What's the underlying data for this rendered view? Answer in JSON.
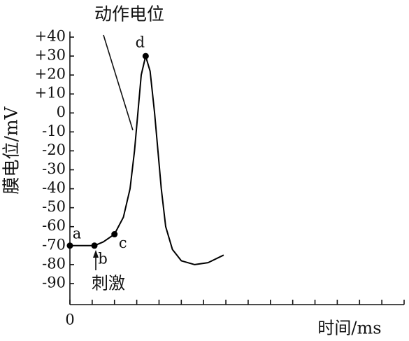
{
  "chart_data": {
    "type": "line",
    "x_label": "时间/ms",
    "y_label": "膜电位/mV",
    "annotations": {
      "stimulus": "刺激",
      "action_potential": "动作电位"
    },
    "x": [
      0,
      1.1,
      1.5,
      2.0,
      2.4,
      2.7,
      2.9,
      3.05,
      3.2,
      3.4,
      3.6,
      3.8,
      3.95,
      4.1,
      4.3,
      4.6,
      5.0,
      5.6,
      6.2,
      6.9
    ],
    "values": [
      -70,
      -70,
      -68,
      -64,
      -55,
      -40,
      -20,
      0,
      20,
      30,
      22,
      0,
      -20,
      -40,
      -60,
      -72,
      -78,
      -80,
      -79,
      -75
    ],
    "color": "#000000",
    "points": [
      {
        "label": "a",
        "x": 0,
        "y": -70
      },
      {
        "label": "b",
        "x": 1.1,
        "y": -70
      },
      {
        "label": "c",
        "x": 2.0,
        "y": -64
      },
      {
        "label": "d",
        "x": 3.4,
        "y": 30
      }
    ],
    "xlim": [
      0,
      15
    ],
    "xticks": [
      0,
      {
        "value": 1,
        "label": null
      },
      {
        "value": 2,
        "label": null
      },
      {
        "value": 3,
        "label": null
      },
      {
        "value": 4,
        "label": null
      },
      {
        "value": 5,
        "label": null
      },
      {
        "value": 6,
        "label": null
      },
      {
        "value": 7,
        "label": null
      },
      {
        "value": 8,
        "label": null
      },
      {
        "value": 9,
        "label": null
      },
      {
        "value": 10,
        "label": null
      },
      {
        "value": 11,
        "label": null
      },
      {
        "value": 12,
        "label": null
      },
      {
        "value": 13,
        "label": null
      },
      {
        "value": 14,
        "label": null
      },
      {
        "value": 15,
        "label": null
      }
    ],
    "ylim": [
      -100,
      40
    ],
    "yticks": [
      {
        "value": 40,
        "label": "+40"
      },
      {
        "value": 30,
        "label": "+30"
      },
      {
        "value": 20,
        "label": "+20"
      },
      {
        "value": 10,
        "label": "+10"
      },
      0,
      -10,
      -20,
      -30,
      -40,
      -50,
      -60,
      -70,
      -80,
      -90
    ]
  }
}
